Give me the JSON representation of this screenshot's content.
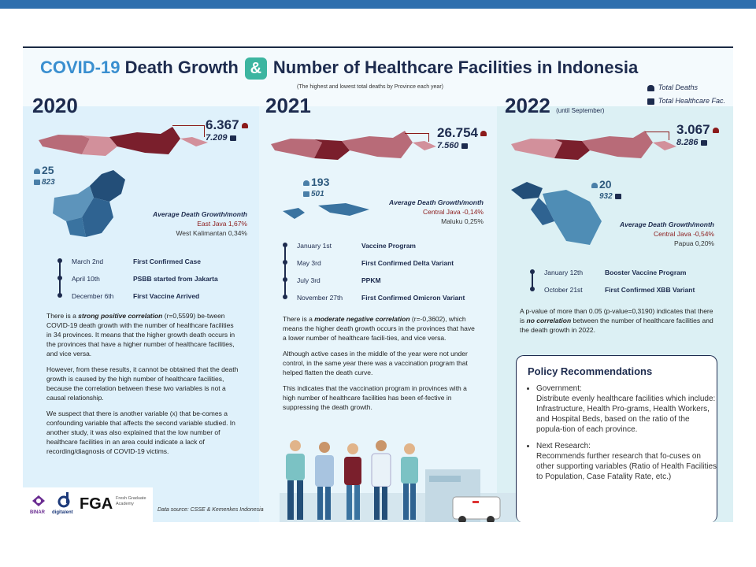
{
  "header": {
    "title_covid": "COVID-19",
    "title_rest": "Death Growth",
    "amp": "&",
    "title_right": "Number of Healthcare Facilities in Indonesia",
    "subtitle": "(The highest and lowest total deaths by Province each year)",
    "legend_deaths": "Total Deaths",
    "legend_facilities": "Total Healthcare Fac."
  },
  "y2020": {
    "year": "2020",
    "high_deaths": "6.367",
    "high_fac": "7.209",
    "low_deaths": "25",
    "low_fac": "823",
    "growth_title": "Average Death Growth/month",
    "growth_high": "East Java 1,67%",
    "growth_low": "West Kalimantan 0,34%",
    "timeline": [
      {
        "date": "March 2nd",
        "event": "First Confirmed Case"
      },
      {
        "date": "April 10th",
        "event": "PSBB started from Jakarta"
      },
      {
        "date": "December 6th",
        "event": "First Vaccine Arrived"
      }
    ],
    "p1_a": "There is a ",
    "p1_b": "strong positive correlation",
    "p1_c": " (r=0,5599) be-tween COVID-19 death growth with the number of healthcare facilities in 34 provinces. It means that the higher growth death occurs in the provinces that have a higher number of healthcare facilities, and vice versa.",
    "p2": "However, from these results, it cannot be obtained that the death growth is caused by the high number of healthcare facilities, because the correlation between these two variables is not a causal relationship.",
    "p3": "We suspect that there is another variable (x) that be-comes a confounding variable that affects the second variable studied. In another study, it was also explained that the low number of healthcare facilities in an area could indicate a lack of recording/diagnosis of COVID-19 victims."
  },
  "y2021": {
    "year": "2021",
    "high_deaths": "26.754",
    "high_fac": "7.560",
    "low_deaths": "193",
    "low_fac": "501",
    "growth_title": "Average Death Growth/month",
    "growth_high": "Central Java -0,14%",
    "growth_low": "Maluku 0,25%",
    "timeline": [
      {
        "date": "January 1st",
        "event": "Vaccine Program"
      },
      {
        "date": "May 3rd",
        "event": "First Confirmed Delta Variant"
      },
      {
        "date": "July 3rd",
        "event": "PPKM"
      },
      {
        "date": "November 27th",
        "event": "First Confirmed Omicron Variant"
      }
    ],
    "p1_a": "There is a ",
    "p1_b": "moderate negative correlation",
    "p1_c": " (r=-0,3602), which means the higher death growth occurs in the provinces that have a lower number of healthcare facili-ties, and vice versa.",
    "p2": "Although active cases in the middle of the year were not under control, in the same year there was a vaccination program that helped flatten the death curve.",
    "p3": "This indicates that the vaccination program in provinces with a high number of healthcare facilities has been ef-fective in suppressing the death growth."
  },
  "y2022": {
    "year": "2022",
    "year_note": "(until September)",
    "high_deaths": "3.067",
    "high_fac": "8.286",
    "low_deaths": "20",
    "low_fac": "932",
    "growth_title": "Average Death Growth/month",
    "growth_high": "Central Java -0,54%",
    "growth_low": "Papua 0,20%",
    "timeline": [
      {
        "date": "January 12th",
        "event": "Booster Vaccine Program"
      },
      {
        "date": "October 21st",
        "event": "First Confirmed XBB Variant"
      }
    ],
    "p1_a": "A p-value of more than 0.05 (p-value=0,3190) indicates that there is ",
    "p1_b": "no correlation",
    "p1_c": " between the number of healthcare facilities and the death growth in 2022."
  },
  "policy": {
    "title": "Policy Recommendations",
    "gov_title": "Government:",
    "gov_text": "Distribute evenly healthcare facilities which include: Infrastructure, Health Pro-grams, Health Workers, and Hospital Beds, based on the ratio of the popula-tion of each province.",
    "res_title": "Next Research:",
    "res_text": "Recommends further research that fo-cuses on other supporting variables (Ratio of Health Facilities to Population, Case Fatality Rate, etc.)"
  },
  "logos": {
    "binar": "BINAR",
    "digitalent": "digitalent",
    "fga": "FGA",
    "fga_sub": "Fresh Graduate Academy"
  },
  "source": "Data source: CSSE & Kemenkes Indonesia"
}
